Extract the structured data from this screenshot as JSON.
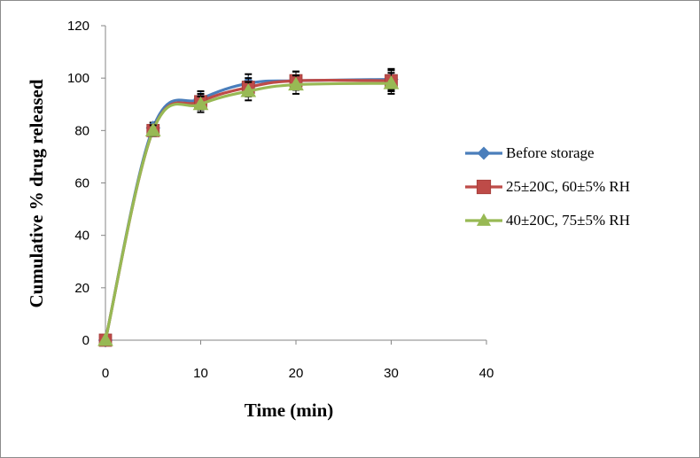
{
  "chart_data": {
    "type": "line",
    "title": "",
    "xlabel": "Time (min)",
    "ylabel": "Cumulative % drug released",
    "xlim": [
      0,
      40
    ],
    "ylim": [
      0,
      120
    ],
    "x_ticks": [
      0,
      10,
      20,
      30,
      40
    ],
    "y_ticks": [
      0,
      20,
      40,
      60,
      80,
      100,
      120
    ],
    "grid": false,
    "legend_position": "right",
    "x": [
      0,
      5,
      10,
      15,
      20,
      30
    ],
    "series": [
      {
        "name": "Before storage",
        "color": "#4a7ebb",
        "marker": "diamond",
        "values": [
          0,
          81,
          92,
          98,
          99,
          99.5
        ],
        "errors": [
          0,
          2,
          3,
          3.5,
          3.5,
          4
        ]
      },
      {
        "name": "25±20C, 60±5% RH",
        "color": "#be4b48",
        "marker": "square",
        "values": [
          0,
          80,
          91,
          96.5,
          99,
          99
        ],
        "errors": [
          0,
          2,
          3,
          3.5,
          3.5,
          4
        ]
      },
      {
        "name": "40±20C, 75±5% RH",
        "color": "#98b954",
        "marker": "triangle",
        "values": [
          0,
          80,
          90,
          95,
          97.5,
          98
        ],
        "errors": [
          0,
          2,
          3,
          3.5,
          3.5,
          4
        ]
      }
    ]
  }
}
